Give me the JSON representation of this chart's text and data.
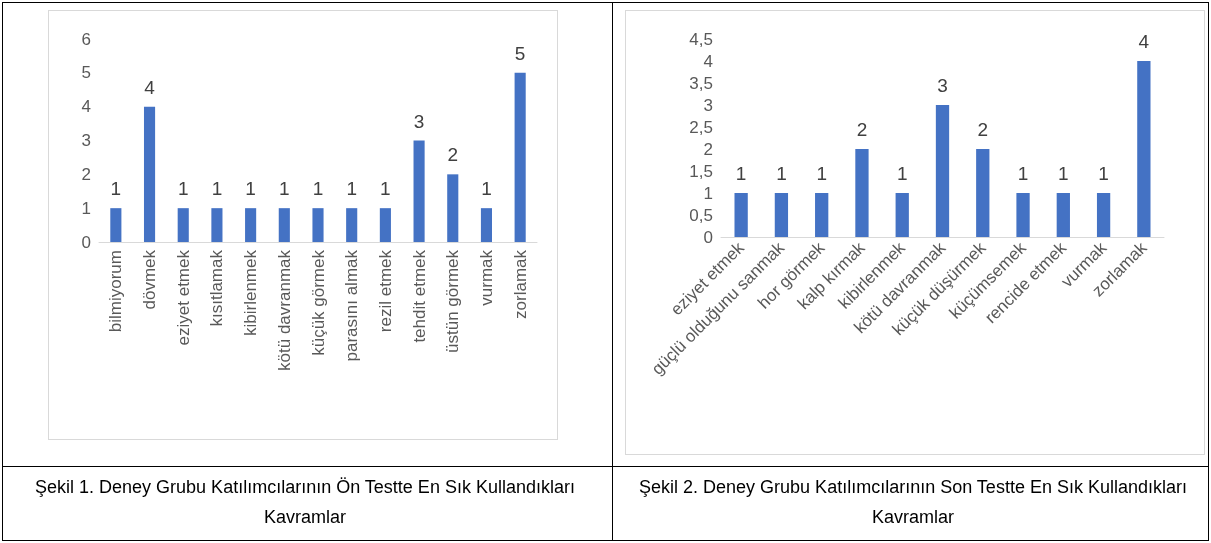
{
  "chart_data": [
    {
      "type": "bar",
      "categories": [
        "bilmiyorum",
        "dövmek",
        "eziyet etmek",
        "kısıtlamak",
        "kibirlenmek",
        "kötü davranmak",
        "küçük görmek",
        "parasını almak",
        "rezil etmek",
        "tehdit etmek",
        "üstün görmek",
        "vurmak",
        "zorlamak"
      ],
      "values": [
        1,
        4,
        1,
        1,
        1,
        1,
        1,
        1,
        1,
        3,
        2,
        1,
        5
      ],
      "color": "#4472c4",
      "ylim": [
        0,
        6
      ],
      "yticks": [
        0,
        1,
        2,
        3,
        4,
        5,
        6
      ],
      "data_labels": true,
      "grid": false,
      "annotations": [
        "Şekil 1. Deney Grubu Katılımcılarının Ön Testte En Sık Kullandıkları Kavramlar"
      ]
    },
    {
      "type": "bar",
      "categories": [
        "eziyet etmek",
        "güçlü olduğunu sanmak",
        "hor görmek",
        "kalp kırmak",
        "kibirlenmek",
        "kötü davranmak",
        "küçük düşürmek",
        "küçümsemek",
        "rencide etmek",
        "vurmak",
        "zorlamak"
      ],
      "values": [
        1,
        1,
        1,
        2,
        1,
        3,
        2,
        1,
        1,
        1,
        4
      ],
      "color": "#4472c4",
      "ylim": [
        0,
        4.5
      ],
      "yticks": [
        0,
        {
          "value": 0.5,
          "label": "0,5"
        },
        1,
        {
          "value": 1.5,
          "label": "1,5"
        },
        2,
        {
          "value": 2.5,
          "label": "2,5"
        },
        3,
        {
          "value": 3.5,
          "label": "3,5"
        },
        4,
        {
          "value": 4.5,
          "label": "4,5"
        }
      ],
      "data_labels": true,
      "grid": false,
      "annotations": [
        "Şekil 2. Deney Grubu Katılımcılarının Son Testte En Sık Kullandıkları Kavramlar"
      ]
    }
  ]
}
